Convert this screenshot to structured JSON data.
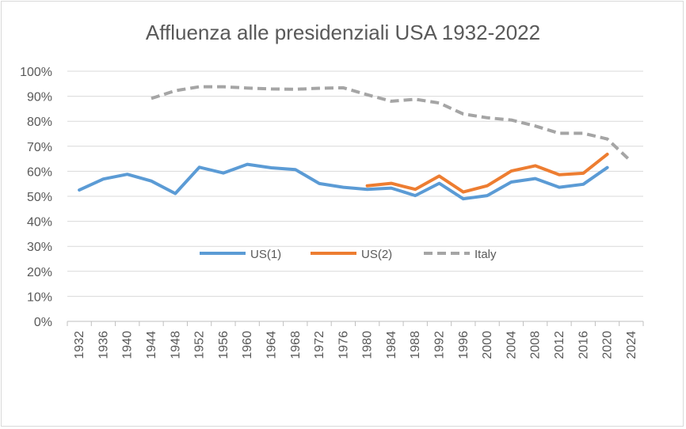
{
  "chart_data": {
    "type": "line",
    "title": "Affluenza alle presidenziali  USA 1932-2022",
    "xlabel": "",
    "ylabel": "",
    "x": [
      1932,
      1936,
      1940,
      1944,
      1948,
      1952,
      1956,
      1960,
      1964,
      1968,
      1972,
      1976,
      1980,
      1984,
      1988,
      1992,
      1996,
      2000,
      2004,
      2008,
      2012,
      2016,
      2020,
      2024
    ],
    "x_tick_labels": [
      "1932",
      "1936",
      "1940",
      "1944",
      "1948",
      "1952",
      "1956",
      "1960",
      "1964",
      "1968",
      "1972",
      "1976",
      "1980",
      "1984",
      "1988",
      "1992",
      "1996",
      "2000",
      "2004",
      "2008",
      "2012",
      "2016",
      "2020",
      "2024"
    ],
    "y_tick_labels": [
      "0%",
      "10%",
      "20%",
      "30%",
      "40%",
      "50%",
      "60%",
      "70%",
      "80%",
      "90%",
      "100%"
    ],
    "ylim": [
      0,
      100
    ],
    "grid": true,
    "legend_position": "center",
    "series": [
      {
        "name": "US(1)",
        "color": "#5b9bd5",
        "style": "solid",
        "values": [
          52.5,
          56.9,
          58.8,
          56.1,
          51.1,
          61.6,
          59.3,
          62.8,
          61.4,
          60.7,
          55.1,
          53.6,
          52.8,
          53.3,
          50.3,
          55.2,
          49.0,
          50.3,
          55.7,
          57.1,
          53.6,
          54.8,
          61.5,
          null
        ]
      },
      {
        "name": "US(2)",
        "color": "#ed7d31",
        "style": "solid",
        "values": [
          null,
          null,
          null,
          null,
          null,
          null,
          null,
          null,
          null,
          null,
          null,
          null,
          54.2,
          55.2,
          52.8,
          58.1,
          51.7,
          54.2,
          60.1,
          62.2,
          58.6,
          59.2,
          66.8,
          null
        ]
      },
      {
        "name": "Italy",
        "color": "#a5a5a5",
        "style": "dashed",
        "values": [
          null,
          null,
          null,
          89.1,
          92.2,
          93.8,
          93.8,
          93.3,
          92.9,
          92.8,
          93.2,
          93.4,
          90.6,
          88.0,
          88.8,
          87.3,
          82.9,
          81.4,
          80.5,
          78.1,
          75.2,
          75.2,
          72.9,
          63.9
        ]
      }
    ]
  }
}
